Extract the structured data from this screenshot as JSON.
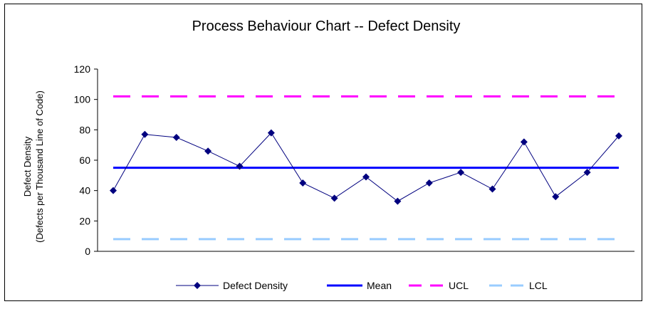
{
  "chart_data": {
    "type": "line",
    "title": "Process Behaviour Chart -- Defect Density",
    "ylabel_line1": "Defect Density",
    "ylabel_line2": "(Defects per Thousand Line of Code)",
    "xlabel": "",
    "ylim": [
      0,
      120
    ],
    "yticks": [
      "0",
      "20",
      "40",
      "60",
      "80",
      "100",
      "120"
    ],
    "grid": false,
    "legend_position": "bottom",
    "series": [
      {
        "name": "Defect Density",
        "color": "#00007f",
        "marker": "diamond",
        "values": [
          40,
          77,
          75,
          66,
          56,
          78,
          45,
          35,
          49,
          33,
          45,
          52,
          41,
          72,
          36,
          52,
          76
        ]
      },
      {
        "name": "Mean",
        "color": "#0000ff",
        "style": "solid",
        "value": 55
      },
      {
        "name": "UCL",
        "color": "#ff00ff",
        "style": "dashed",
        "value": 102
      },
      {
        "name": "LCL",
        "color": "#99ccff",
        "style": "dashed",
        "value": 8
      }
    ]
  }
}
